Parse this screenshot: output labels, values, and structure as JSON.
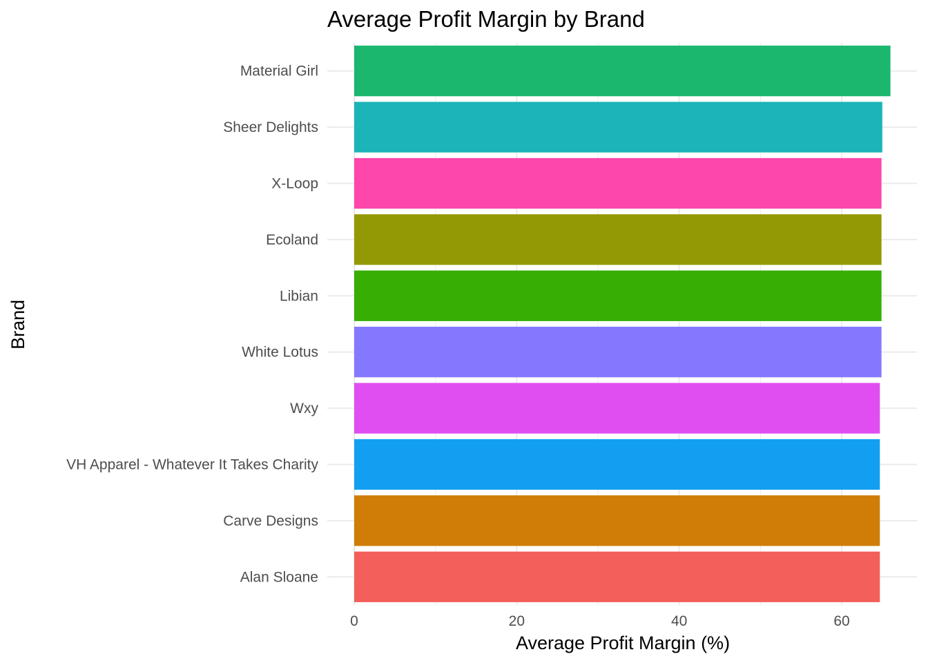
{
  "chart_data": {
    "type": "bar",
    "orientation": "horizontal",
    "title": "Average Profit Margin by Brand",
    "xlabel": "Average Profit Margin (%)",
    "ylabel": "Brand",
    "categories": [
      "Material Girl",
      "Sheer Delights",
      "X-Loop",
      "Ecoland",
      "Libian",
      "White Lotus",
      "Wxy",
      "VH Apparel - Whatever It Takes Charity",
      "Carve Designs",
      "Alan Sloane"
    ],
    "values": [
      66.0,
      65.0,
      64.9,
      64.9,
      64.9,
      64.9,
      64.7,
      64.7,
      64.7,
      64.7
    ],
    "colors": [
      "#1BB76E",
      "#1BB4B8",
      "#FD47AC",
      "#939904",
      "#36AE04",
      "#8479FE",
      "#E04DF1",
      "#139FF1",
      "#CF7D07",
      "#F35F5A"
    ],
    "xlim": [
      0,
      68.5
    ],
    "xticks": [
      0,
      20,
      40,
      60
    ],
    "grid": true,
    "legend": "none"
  }
}
